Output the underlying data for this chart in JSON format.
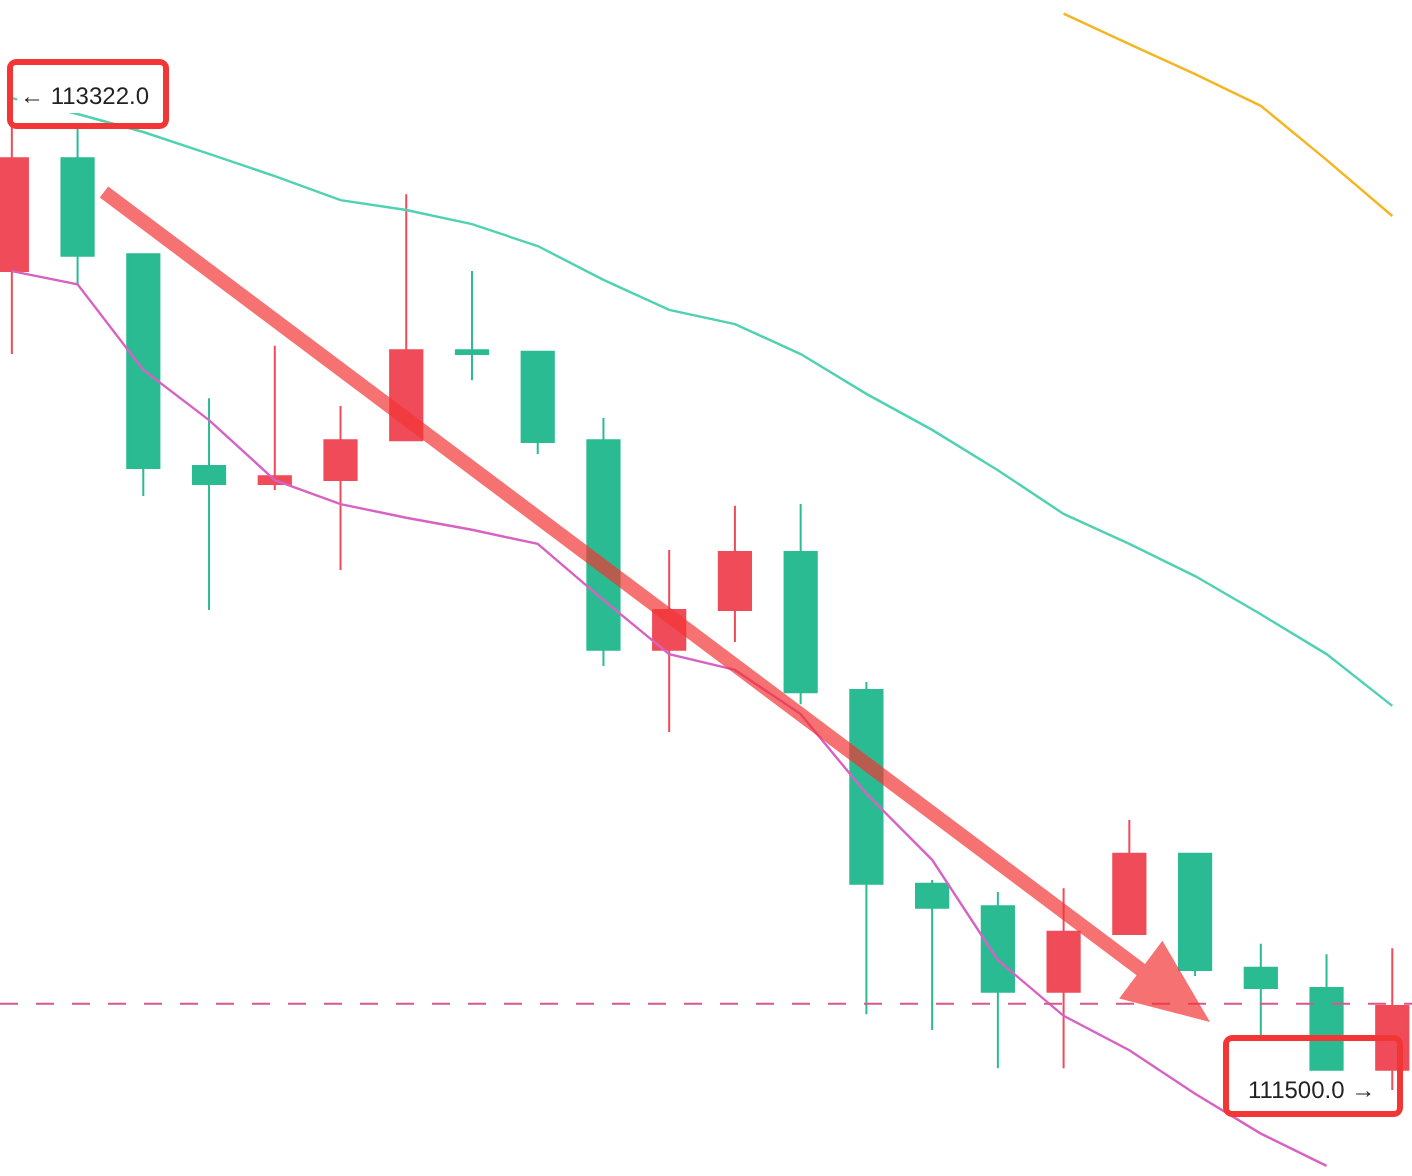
{
  "chart_data": {
    "type": "candlestick",
    "categories": [
      null,
      null,
      null,
      null,
      null,
      null,
      null,
      null,
      null,
      null,
      null,
      null,
      null,
      null,
      null,
      null,
      null,
      null,
      null,
      null,
      null,
      null
    ],
    "ohlc": [
      [
        113001,
        113322,
        112849,
        113208
      ],
      [
        113208,
        113263,
        112977,
        113029
      ],
      [
        113032,
        113032,
        112589,
        112640
      ],
      [
        112644,
        112768,
        112380,
        112611
      ],
      [
        112611,
        112864,
        112600,
        112625
      ],
      [
        112618,
        112754,
        112453,
        112691
      ],
      [
        112691,
        113142,
        112691,
        112856
      ],
      [
        112856,
        113001,
        112801,
        112849
      ],
      [
        112853,
        112853,
        112666,
        112688
      ],
      [
        112691,
        112732,
        112277,
        112307
      ],
      [
        112307,
        112490,
        112156,
        112380
      ],
      [
        112380,
        112571,
        112321,
        112486
      ],
      [
        112486,
        112574,
        112207,
        112229
      ],
      [
        112233,
        112248,
        111639,
        111878
      ],
      [
        111878,
        111885,
        111610,
        111834
      ],
      [
        111837,
        111863,
        111540,
        111680
      ],
      [
        111680,
        111870,
        111540,
        111790
      ],
      [
        111786,
        111995,
        111786,
        111933
      ],
      [
        111933,
        111933,
        111709,
        111720
      ],
      [
        111724,
        111768,
        111599,
        111687
      ],
      [
        111687,
        111749,
        111537,
        111537
      ],
      [
        111537,
        111760,
        111500,
        111654
      ]
    ],
    "colors": [
      "#ef4b59",
      "#2bbb92",
      "#2bbb92",
      "#2bbb92",
      "#ef4b59",
      "#ef4b59",
      "#ef4b59",
      "#2bbb92",
      "#2bbb92",
      "#2bbb92",
      "#ef4b59",
      "#ef4b59",
      "#2bbb92",
      "#2bbb92",
      "#2bbb92",
      "#2bbb92",
      "#ef4b59",
      "#ef4b59",
      "#2bbb92",
      "#2bbb92",
      "#2bbb92",
      "#ef4b59"
    ],
    "series": [
      {
        "type": "line",
        "color": "#4fd1b3",
        "values": [
          113318,
          113289,
          113256,
          113216,
          113175,
          113131,
          113113,
          113087,
          113047,
          112985,
          112930,
          112904,
          112849,
          112776,
          112710,
          112636,
          112556,
          112501,
          112442,
          112372,
          112299,
          112204
        ]
      },
      {
        "type": "line",
        "color": "#d862c4",
        "values": [
          113001,
          112977,
          112820,
          112728,
          112618,
          112574,
          112549,
          112527,
          112501,
          112398,
          112299,
          112270,
          112189,
          112043,
          111922,
          111738,
          111636,
          111573,
          111493,
          111420,
          111361,
          null
        ]
      },
      {
        "type": "line",
        "color": "#f5b520",
        "values": [
          null,
          null,
          null,
          null,
          null,
          null,
          null,
          null,
          null,
          null,
          null,
          null,
          null,
          null,
          null,
          null,
          113473,
          113417,
          113362,
          113304,
          113205,
          113102
        ]
      }
    ],
    "ref_lines": [
      {
        "axis": "y",
        "value": 111658,
        "color": "#d9578f",
        "line_style": "dashed"
      }
    ],
    "annotations": [
      "← 113322.0",
      "111500.0 →"
    ]
  }
}
